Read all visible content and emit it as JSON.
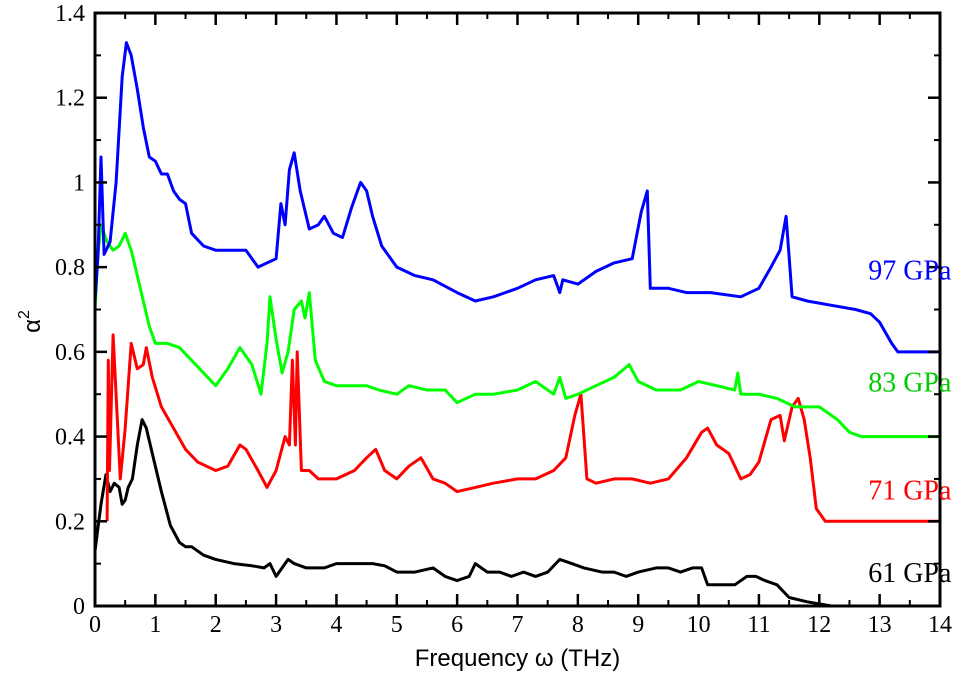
{
  "chart_data": {
    "type": "line",
    "title": "",
    "xlabel": "Frequency ω (THz)",
    "ylabel": "α",
    "ylabel_superscript": "2",
    "xlim": [
      0,
      14
    ],
    "ylim": [
      0,
      1.4
    ],
    "xticks": [
      "0",
      "1",
      "2",
      "3",
      "4",
      "5",
      "6",
      "7",
      "8",
      "9",
      "10",
      "11",
      "12",
      "13",
      "14"
    ],
    "yticks": [
      "0",
      "0.2",
      "0.4",
      "0.6",
      "0.8",
      "1",
      "1.2",
      "1.4"
    ],
    "grid": false,
    "legend": "inline labels at right end of each curve",
    "series": [
      {
        "name": "61 GPa",
        "color": "#000000",
        "points": [
          [
            0,
            0.13
          ],
          [
            0.1,
            0.24
          ],
          [
            0.18,
            0.31
          ],
          [
            0.25,
            0.27
          ],
          [
            0.32,
            0.29
          ],
          [
            0.4,
            0.28
          ],
          [
            0.45,
            0.24
          ],
          [
            0.5,
            0.25
          ],
          [
            0.55,
            0.28
          ],
          [
            0.62,
            0.3
          ],
          [
            0.7,
            0.38
          ],
          [
            0.78,
            0.44
          ],
          [
            0.85,
            0.42
          ],
          [
            0.95,
            0.36
          ],
          [
            1.1,
            0.27
          ],
          [
            1.25,
            0.19
          ],
          [
            1.4,
            0.15
          ],
          [
            1.5,
            0.14
          ],
          [
            1.6,
            0.14
          ],
          [
            1.8,
            0.12
          ],
          [
            2.0,
            0.11
          ],
          [
            2.3,
            0.1
          ],
          [
            2.6,
            0.095
          ],
          [
            2.8,
            0.09
          ],
          [
            2.9,
            0.1
          ],
          [
            3.0,
            0.07
          ],
          [
            3.1,
            0.09
          ],
          [
            3.2,
            0.11
          ],
          [
            3.3,
            0.1
          ],
          [
            3.5,
            0.09
          ],
          [
            3.8,
            0.09
          ],
          [
            4.0,
            0.1
          ],
          [
            4.3,
            0.1
          ],
          [
            4.6,
            0.1
          ],
          [
            4.8,
            0.095
          ],
          [
            5.0,
            0.08
          ],
          [
            5.3,
            0.08
          ],
          [
            5.6,
            0.09
          ],
          [
            5.8,
            0.07
          ],
          [
            6.0,
            0.06
          ],
          [
            6.2,
            0.07
          ],
          [
            6.3,
            0.1
          ],
          [
            6.5,
            0.08
          ],
          [
            6.7,
            0.08
          ],
          [
            6.9,
            0.07
          ],
          [
            7.1,
            0.08
          ],
          [
            7.3,
            0.07
          ],
          [
            7.5,
            0.08
          ],
          [
            7.7,
            0.11
          ],
          [
            7.9,
            0.1
          ],
          [
            8.1,
            0.09
          ],
          [
            8.4,
            0.08
          ],
          [
            8.6,
            0.08
          ],
          [
            8.8,
            0.07
          ],
          [
            9.0,
            0.08
          ],
          [
            9.3,
            0.09
          ],
          [
            9.5,
            0.09
          ],
          [
            9.7,
            0.08
          ],
          [
            9.9,
            0.09
          ],
          [
            10.05,
            0.09
          ],
          [
            10.15,
            0.05
          ],
          [
            10.4,
            0.05
          ],
          [
            10.6,
            0.05
          ],
          [
            10.8,
            0.07
          ],
          [
            10.95,
            0.07
          ],
          [
            11.1,
            0.06
          ],
          [
            11.3,
            0.05
          ],
          [
            11.5,
            0.02
          ],
          [
            11.8,
            0.01
          ],
          [
            12.2,
            0.0
          ],
          [
            14,
            0.0
          ]
        ]
      },
      {
        "name": "71 GPa",
        "color": "#ff0000",
        "points": [
          [
            0.2,
            0.2
          ],
          [
            0.22,
            0.58
          ],
          [
            0.24,
            0.32
          ],
          [
            0.3,
            0.64
          ],
          [
            0.42,
            0.3
          ],
          [
            0.5,
            0.42
          ],
          [
            0.6,
            0.62
          ],
          [
            0.7,
            0.56
          ],
          [
            0.8,
            0.57
          ],
          [
            0.85,
            0.61
          ],
          [
            0.95,
            0.54
          ],
          [
            1.1,
            0.47
          ],
          [
            1.3,
            0.42
          ],
          [
            1.5,
            0.37
          ],
          [
            1.7,
            0.34
          ],
          [
            2.0,
            0.32
          ],
          [
            2.2,
            0.33
          ],
          [
            2.4,
            0.38
          ],
          [
            2.5,
            0.37
          ],
          [
            2.7,
            0.32
          ],
          [
            2.85,
            0.28
          ],
          [
            3.0,
            0.32
          ],
          [
            3.15,
            0.4
          ],
          [
            3.22,
            0.38
          ],
          [
            3.27,
            0.58
          ],
          [
            3.32,
            0.38
          ],
          [
            3.35,
            0.6
          ],
          [
            3.42,
            0.32
          ],
          [
            3.55,
            0.32
          ],
          [
            3.7,
            0.3
          ],
          [
            4.0,
            0.3
          ],
          [
            4.3,
            0.32
          ],
          [
            4.5,
            0.35
          ],
          [
            4.65,
            0.37
          ],
          [
            4.8,
            0.32
          ],
          [
            5.0,
            0.3
          ],
          [
            5.2,
            0.33
          ],
          [
            5.4,
            0.35
          ],
          [
            5.6,
            0.3
          ],
          [
            5.8,
            0.29
          ],
          [
            6.0,
            0.27
          ],
          [
            6.3,
            0.28
          ],
          [
            6.6,
            0.29
          ],
          [
            7.0,
            0.3
          ],
          [
            7.3,
            0.3
          ],
          [
            7.6,
            0.32
          ],
          [
            7.8,
            0.35
          ],
          [
            7.95,
            0.45
          ],
          [
            8.05,
            0.5
          ],
          [
            8.15,
            0.3
          ],
          [
            8.3,
            0.29
          ],
          [
            8.6,
            0.3
          ],
          [
            8.9,
            0.3
          ],
          [
            9.2,
            0.29
          ],
          [
            9.5,
            0.3
          ],
          [
            9.8,
            0.35
          ],
          [
            10.05,
            0.41
          ],
          [
            10.15,
            0.42
          ],
          [
            10.3,
            0.38
          ],
          [
            10.5,
            0.36
          ],
          [
            10.7,
            0.3
          ],
          [
            10.85,
            0.31
          ],
          [
            11.0,
            0.34
          ],
          [
            11.2,
            0.44
          ],
          [
            11.35,
            0.45
          ],
          [
            11.42,
            0.39
          ],
          [
            11.55,
            0.47
          ],
          [
            11.65,
            0.49
          ],
          [
            11.75,
            0.44
          ],
          [
            11.85,
            0.35
          ],
          [
            11.95,
            0.23
          ],
          [
            12.1,
            0.2
          ],
          [
            14,
            0.2
          ]
        ]
      },
      {
        "name": "83 GPa",
        "color": "#00ff00",
        "points": [
          [
            0,
            0.7
          ],
          [
            0.05,
            0.83
          ],
          [
            0.1,
            0.9
          ],
          [
            0.2,
            0.86
          ],
          [
            0.3,
            0.84
          ],
          [
            0.4,
            0.85
          ],
          [
            0.5,
            0.88
          ],
          [
            0.6,
            0.84
          ],
          [
            0.7,
            0.78
          ],
          [
            0.8,
            0.72
          ],
          [
            0.9,
            0.66
          ],
          [
            1.0,
            0.62
          ],
          [
            1.2,
            0.62
          ],
          [
            1.4,
            0.61
          ],
          [
            1.6,
            0.58
          ],
          [
            1.8,
            0.55
          ],
          [
            2.0,
            0.52
          ],
          [
            2.2,
            0.56
          ],
          [
            2.4,
            0.61
          ],
          [
            2.6,
            0.57
          ],
          [
            2.75,
            0.5
          ],
          [
            2.85,
            0.62
          ],
          [
            2.9,
            0.73
          ],
          [
            3.0,
            0.63
          ],
          [
            3.1,
            0.55
          ],
          [
            3.2,
            0.6
          ],
          [
            3.3,
            0.7
          ],
          [
            3.42,
            0.72
          ],
          [
            3.48,
            0.68
          ],
          [
            3.55,
            0.74
          ],
          [
            3.65,
            0.58
          ],
          [
            3.8,
            0.53
          ],
          [
            4.0,
            0.52
          ],
          [
            4.3,
            0.52
          ],
          [
            4.5,
            0.52
          ],
          [
            4.7,
            0.51
          ],
          [
            5.0,
            0.5
          ],
          [
            5.2,
            0.52
          ],
          [
            5.5,
            0.51
          ],
          [
            5.8,
            0.51
          ],
          [
            6.0,
            0.48
          ],
          [
            6.3,
            0.5
          ],
          [
            6.6,
            0.5
          ],
          [
            7.0,
            0.51
          ],
          [
            7.3,
            0.53
          ],
          [
            7.6,
            0.5
          ],
          [
            7.7,
            0.54
          ],
          [
            7.8,
            0.49
          ],
          [
            8.0,
            0.5
          ],
          [
            8.3,
            0.52
          ],
          [
            8.6,
            0.54
          ],
          [
            8.85,
            0.57
          ],
          [
            9.0,
            0.53
          ],
          [
            9.3,
            0.51
          ],
          [
            9.7,
            0.51
          ],
          [
            10.0,
            0.53
          ],
          [
            10.3,
            0.52
          ],
          [
            10.6,
            0.51
          ],
          [
            10.65,
            0.55
          ],
          [
            10.7,
            0.5
          ],
          [
            11.0,
            0.5
          ],
          [
            11.3,
            0.49
          ],
          [
            11.6,
            0.47
          ],
          [
            12.0,
            0.47
          ],
          [
            12.3,
            0.44
          ],
          [
            12.5,
            0.41
          ],
          [
            12.7,
            0.4
          ],
          [
            14,
            0.4
          ]
        ]
      },
      {
        "name": "97 GPa",
        "color": "#0000ff",
        "points": [
          [
            0,
            0.72
          ],
          [
            0.05,
            0.83
          ],
          [
            0.1,
            1.06
          ],
          [
            0.15,
            0.83
          ],
          [
            0.25,
            0.86
          ],
          [
            0.35,
            1.0
          ],
          [
            0.45,
            1.25
          ],
          [
            0.52,
            1.33
          ],
          [
            0.6,
            1.3
          ],
          [
            0.7,
            1.22
          ],
          [
            0.8,
            1.13
          ],
          [
            0.9,
            1.06
          ],
          [
            1.0,
            1.05
          ],
          [
            1.1,
            1.02
          ],
          [
            1.2,
            1.02
          ],
          [
            1.3,
            0.98
          ],
          [
            1.4,
            0.96
          ],
          [
            1.5,
            0.95
          ],
          [
            1.6,
            0.88
          ],
          [
            1.8,
            0.85
          ],
          [
            2.0,
            0.84
          ],
          [
            2.3,
            0.84
          ],
          [
            2.5,
            0.84
          ],
          [
            2.7,
            0.8
          ],
          [
            3.0,
            0.82
          ],
          [
            3.08,
            0.95
          ],
          [
            3.15,
            0.9
          ],
          [
            3.22,
            1.03
          ],
          [
            3.3,
            1.07
          ],
          [
            3.4,
            0.98
          ],
          [
            3.55,
            0.89
          ],
          [
            3.7,
            0.9
          ],
          [
            3.8,
            0.92
          ],
          [
            3.95,
            0.88
          ],
          [
            4.1,
            0.87
          ],
          [
            4.25,
            0.94
          ],
          [
            4.4,
            1.0
          ],
          [
            4.5,
            0.98
          ],
          [
            4.6,
            0.92
          ],
          [
            4.75,
            0.85
          ],
          [
            5.0,
            0.8
          ],
          [
            5.3,
            0.78
          ],
          [
            5.6,
            0.77
          ],
          [
            6.0,
            0.74
          ],
          [
            6.3,
            0.72
          ],
          [
            6.6,
            0.73
          ],
          [
            7.0,
            0.75
          ],
          [
            7.3,
            0.77
          ],
          [
            7.6,
            0.78
          ],
          [
            7.7,
            0.74
          ],
          [
            7.75,
            0.77
          ],
          [
            8.0,
            0.76
          ],
          [
            8.3,
            0.79
          ],
          [
            8.6,
            0.81
          ],
          [
            8.9,
            0.82
          ],
          [
            9.05,
            0.93
          ],
          [
            9.15,
            0.98
          ],
          [
            9.2,
            0.75
          ],
          [
            9.5,
            0.75
          ],
          [
            9.8,
            0.74
          ],
          [
            10.2,
            0.74
          ],
          [
            10.7,
            0.73
          ],
          [
            11.0,
            0.75
          ],
          [
            11.2,
            0.8
          ],
          [
            11.35,
            0.84
          ],
          [
            11.45,
            0.92
          ],
          [
            11.55,
            0.73
          ],
          [
            11.8,
            0.72
          ],
          [
            12.2,
            0.71
          ],
          [
            12.6,
            0.7
          ],
          [
            12.85,
            0.69
          ],
          [
            13.0,
            0.67
          ],
          [
            13.2,
            0.62
          ],
          [
            13.3,
            0.6
          ],
          [
            14,
            0.6
          ]
        ]
      }
    ],
    "annotations": [
      {
        "text": "97 GPa",
        "color": "#0000ff",
        "x": 13.5,
        "y": 0.795
      },
      {
        "text": "83 GPa",
        "color": "#00cc00",
        "x": 13.5,
        "y": 0.53
      },
      {
        "text": "71 GPa",
        "color": "#ff0000",
        "x": 13.5,
        "y": 0.275
      },
      {
        "text": "61 GPa",
        "color": "#000000",
        "x": 13.5,
        "y": 0.08
      }
    ]
  }
}
